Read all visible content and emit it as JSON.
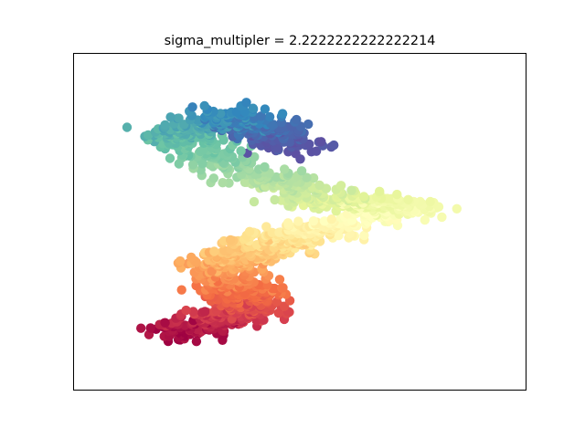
{
  "chart_data": {
    "type": "scatter",
    "title": "sigma_multipler = 2.2222222222222214",
    "xlabel": "",
    "ylabel": "",
    "xlim": [
      0,
      1
    ],
    "ylim": [
      0,
      1
    ],
    "show_ticks": false,
    "grid": false,
    "colormap": "Spectral",
    "colormap_stops": [
      "#9e0142",
      "#d53e4f",
      "#f46d43",
      "#fdae61",
      "#fee08b",
      "#ffffbf",
      "#e6f598",
      "#abdda4",
      "#66c2a5",
      "#3288bd",
      "#5e4fa2"
    ],
    "manifold": {
      "description_of_points": "continuous colour parameter t in [0,1]",
      "polyline": [
        {
          "t": 0.0,
          "x": 0.24,
          "y": 0.17
        },
        {
          "t": 0.15,
          "x": 0.39,
          "y": 0.25
        },
        {
          "t": 0.3,
          "x": 0.33,
          "y": 0.38
        },
        {
          "t": 0.45,
          "x": 0.52,
          "y": 0.47
        },
        {
          "t": 0.55,
          "x": 0.74,
          "y": 0.55
        },
        {
          "t": 0.62,
          "x": 0.55,
          "y": 0.56
        },
        {
          "t": 0.72,
          "x": 0.38,
          "y": 0.65
        },
        {
          "t": 0.82,
          "x": 0.22,
          "y": 0.76
        },
        {
          "t": 0.9,
          "x": 0.35,
          "y": 0.82
        },
        {
          "t": 1.0,
          "x": 0.5,
          "y": 0.72
        }
      ],
      "point_count": 1500,
      "spread_x": 0.14,
      "spread_y": 0.045
    }
  }
}
